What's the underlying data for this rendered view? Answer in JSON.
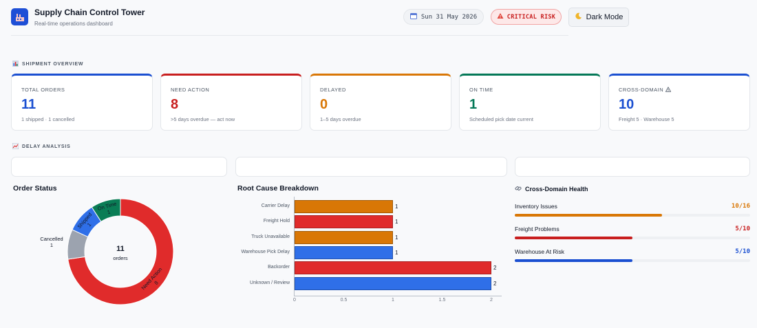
{
  "header": {
    "logo_icon": "factory-icon",
    "title": "Supply Chain Control Tower",
    "subtitle": "Real-time operations dashboard",
    "date_icon": "calendar-icon",
    "date": "Sun 31 May 2026",
    "risk_icon": "alert-triangle-icon",
    "risk": "CRITICAL RISK",
    "mode_icon": "moon-icon",
    "mode": "Dark Mode"
  },
  "overview": {
    "icon": "bar-chart-icon",
    "label": "SHIPMENT OVERVIEW",
    "cards": [
      {
        "label": "TOTAL ORDERS",
        "value": "11",
        "sub": "1 shipped · 1 cancelled",
        "color": "#1a4fd1"
      },
      {
        "label": "NEED ACTION",
        "value": "8",
        "sub": ">5 days overdue — act now",
        "color": "#c81e1e"
      },
      {
        "label": "DELAYED",
        "value": "0",
        "sub": "1–5 days overdue",
        "color": "#d97706"
      },
      {
        "label": "ON TIME",
        "value": "1",
        "sub": "Scheduled pick date current",
        "color": "#047857"
      },
      {
        "label": "CROSS-DOMAIN",
        "label_icon": "warning-icon",
        "value": "10",
        "sub": "Freight 5 · Warehouse 5",
        "color": "#1a4fd1"
      }
    ]
  },
  "delay": {
    "icon": "line-chart-icon",
    "label": "DELAY ANALYSIS"
  },
  "order_status": {
    "title": "Order Status",
    "center_value": "11",
    "center_label": "orders",
    "segments": [
      {
        "label": "Need Action",
        "count": "8",
        "value": 8,
        "color": "#e02b2b"
      },
      {
        "label": "Cancelled",
        "count": "1",
        "value": 1,
        "color": "#9ca3af"
      },
      {
        "label": "Shipped",
        "count": "1",
        "value": 1,
        "color": "#2f6fe8"
      },
      {
        "label": "On Time",
        "count": "1",
        "value": 1,
        "color": "#0a7d55"
      }
    ]
  },
  "chart_data": {
    "type": "bar",
    "orientation": "horizontal",
    "title": "Root Cause Breakdown",
    "categories": [
      "Carrier Delay",
      "Freight Hold",
      "Truck Unavailable",
      "Warehouse Pick Delay",
      "Backorder",
      "Unknown / Review"
    ],
    "values": [
      1,
      1,
      1,
      1,
      2,
      2
    ],
    "value_labels": [
      "1",
      "1",
      "1",
      "1",
      "2",
      "2"
    ],
    "colors": [
      "#d97706",
      "#e02b2b",
      "#d97706",
      "#2f6fe8",
      "#e02b2b",
      "#2f6fe8"
    ],
    "xlim": [
      0,
      2
    ],
    "xticks": [
      "0",
      "0.5",
      "1",
      "1.5",
      "2"
    ],
    "grid": false
  },
  "health": {
    "icon": "link-icon",
    "title": "Cross-Domain Health",
    "items": [
      {
        "label": "Inventory Issues",
        "value": "10/16",
        "ratio": 0.625,
        "color": "#d97706"
      },
      {
        "label": "Freight Problems",
        "value": "5/10",
        "ratio": 0.5,
        "color": "#c81e1e"
      },
      {
        "label": "Warehouse At Risk",
        "value": "5/10",
        "ratio": 0.5,
        "color": "#1a4fd1"
      }
    ]
  }
}
